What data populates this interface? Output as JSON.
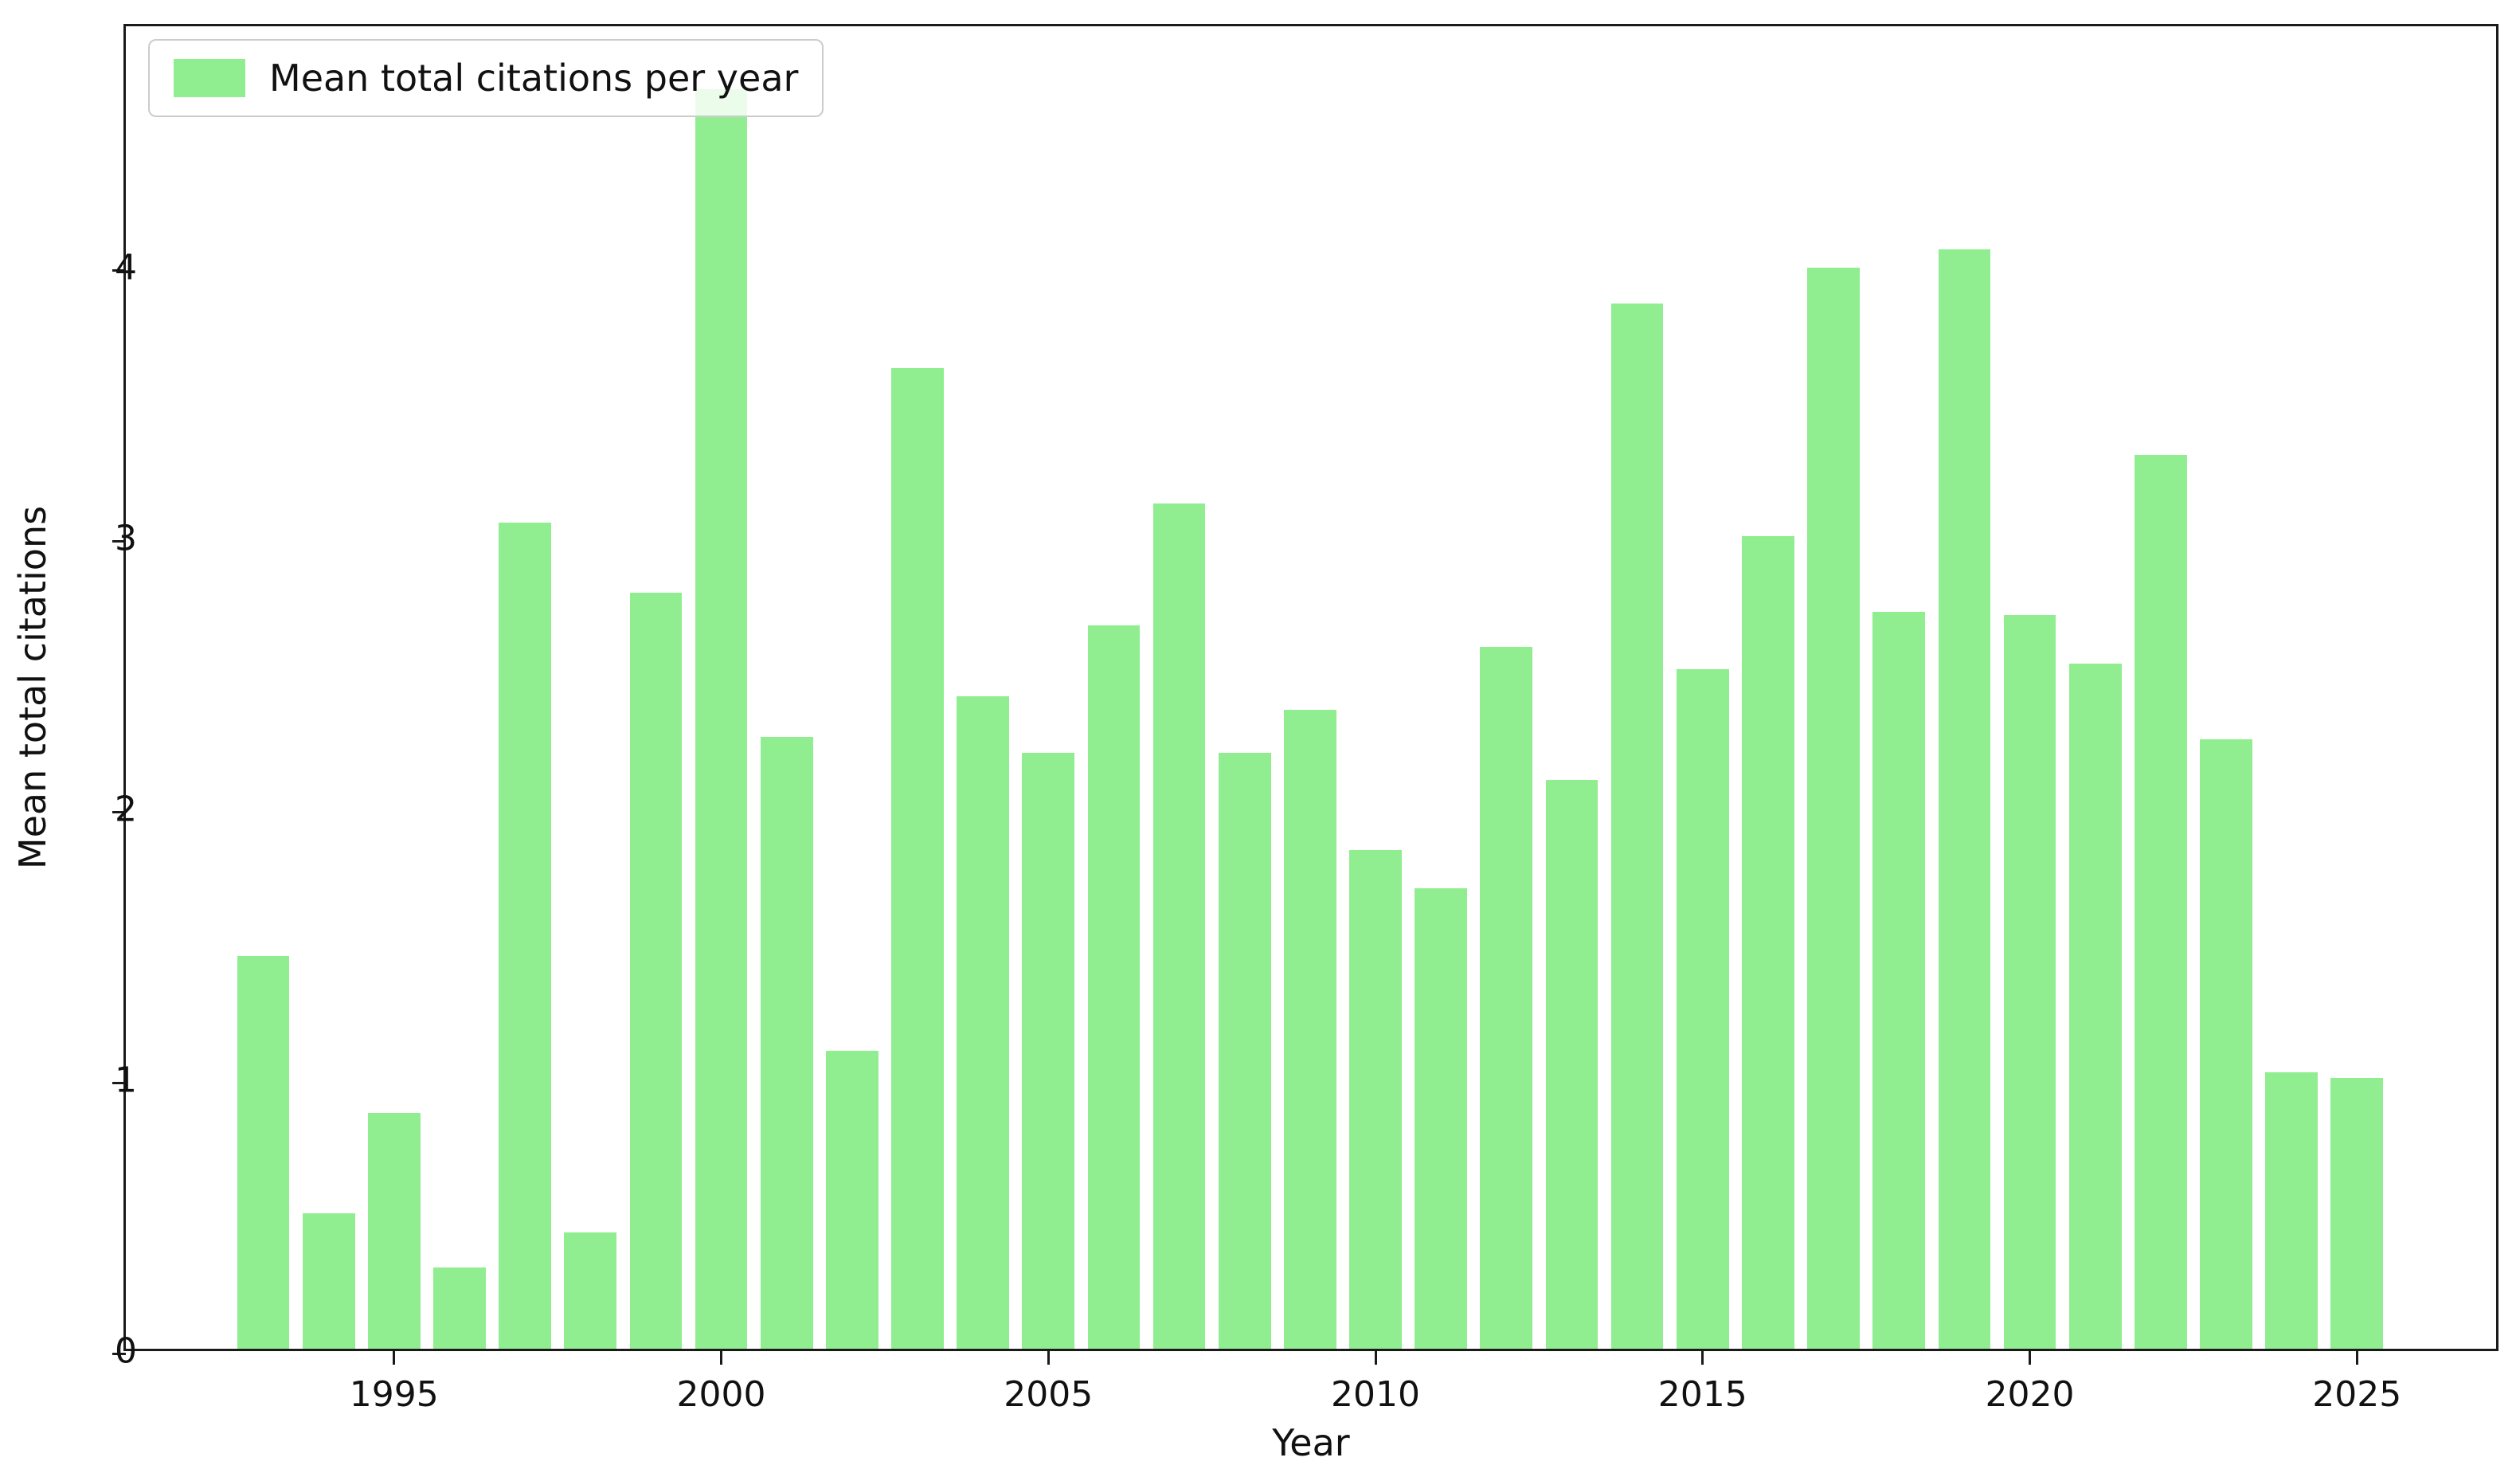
{
  "chart_data": {
    "type": "bar",
    "title": "",
    "xlabel": "Year",
    "ylabel": "Mean total citations",
    "legend": {
      "label": "Mean total citations per year",
      "position": "upper-left"
    },
    "bar_color": "#90EE90",
    "bar_width_years": 0.8,
    "grid": false,
    "xlim": [
      1990.9,
      2027.2
    ],
    "ylim": [
      0,
      4.9
    ],
    "xticks": [
      1995,
      2000,
      2005,
      2010,
      2015,
      2020,
      2025
    ],
    "yticks": [
      0,
      1,
      2,
      3,
      4
    ],
    "x": [
      1993,
      1994,
      1995,
      1996,
      1997,
      1998,
      1999,
      2000,
      2001,
      2002,
      2003,
      2004,
      2005,
      2006,
      2007,
      2008,
      2009,
      2010,
      2011,
      2012,
      2013,
      2014,
      2015,
      2016,
      2017,
      2018,
      2019,
      2020,
      2021,
      2022,
      2023,
      2024,
      2025
    ],
    "values": [
      1.45,
      0.5,
      0.87,
      0.3,
      3.05,
      0.43,
      2.79,
      4.65,
      2.26,
      1.1,
      3.62,
      2.41,
      2.2,
      2.67,
      3.12,
      2.2,
      2.36,
      1.84,
      1.7,
      2.59,
      2.1,
      3.86,
      2.51,
      3.0,
      3.99,
      2.72,
      4.06,
      2.71,
      2.53,
      3.3,
      2.25,
      1.02,
      1.0
    ]
  }
}
